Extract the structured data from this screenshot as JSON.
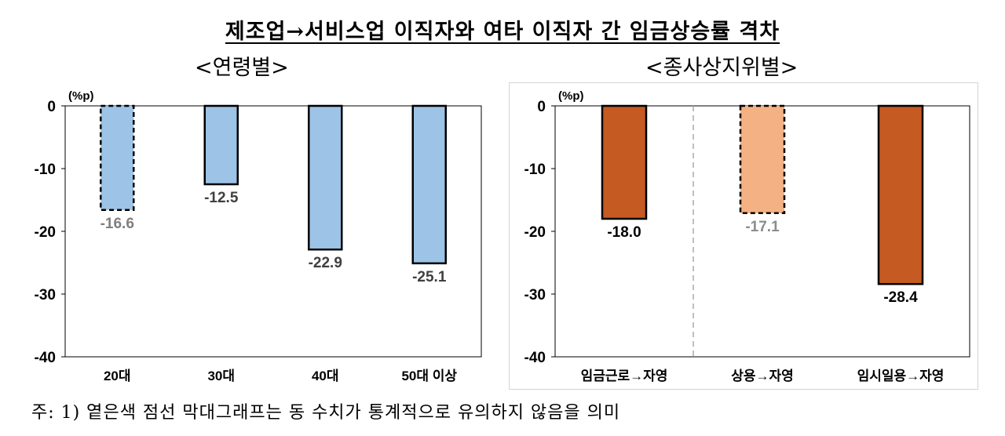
{
  "title": "제조업→서비스업 이직자와 여타 이직자 간 임금상승률 격차",
  "subtitle_left": "<연령별>",
  "subtitle_right": "<종사상지위별>",
  "note": "주: 1) 옅은색 점선 막대그래프는 동 수치가 통계적으로 유의하지 않음을 의미",
  "chart_data": [
    {
      "type": "bar",
      "unit_label": "(%p)",
      "categories": [
        "20대",
        "30대",
        "40대",
        "50대 이상"
      ],
      "values": [
        -16.6,
        -12.5,
        -22.9,
        -25.1
      ],
      "labels": [
        "-16.6",
        "-12.5",
        "-22.9",
        "-25.1"
      ],
      "significant": [
        false,
        true,
        true,
        true
      ],
      "colors": [
        "#9dc3e6",
        "#9dc3e6",
        "#9dc3e6",
        "#9dc3e6"
      ],
      "label_colors": [
        "#7f7f7f",
        "#404040",
        "#404040",
        "#404040"
      ],
      "ylim": [
        -40,
        0
      ],
      "yticks": [
        0,
        -10,
        -20,
        -30,
        -40
      ],
      "ytick_labels": [
        "0",
        "-10",
        "-20",
        "-30",
        "-40"
      ],
      "grid": false,
      "divider": false
    },
    {
      "type": "bar",
      "unit_label": "(%p)",
      "categories": [
        "임금근로→자영",
        "상용→자영",
        "임시일용→자영"
      ],
      "values": [
        -18.0,
        -17.1,
        -28.4
      ],
      "labels": [
        "-18.0",
        "-17.1",
        "-28.4"
      ],
      "significant": [
        true,
        false,
        true
      ],
      "colors": [
        "#c55a22",
        "#f4b183",
        "#c55a22"
      ],
      "label_colors": [
        "#000000",
        "#8c8c8c",
        "#000000"
      ],
      "ylim": [
        -40,
        0
      ],
      "yticks": [
        0,
        -10,
        -20,
        -30,
        -40
      ],
      "ytick_labels": [
        "0",
        "-10",
        "-20",
        "-30",
        "-40"
      ],
      "grid": false,
      "divider": true
    }
  ]
}
